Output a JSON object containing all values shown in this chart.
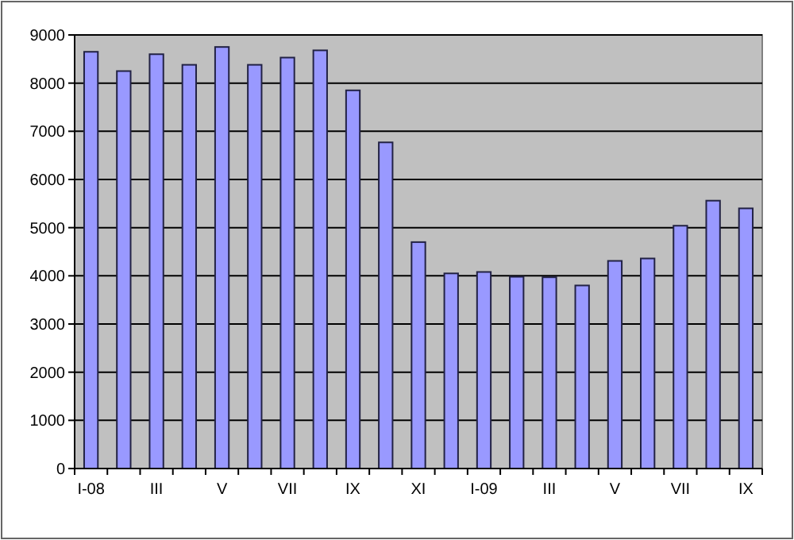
{
  "chart_data": {
    "type": "bar",
    "categories": [
      "I-08",
      null,
      "III",
      null,
      "V",
      null,
      "VII",
      null,
      "IX",
      null,
      "XI",
      null,
      "I-09",
      null,
      "III",
      null,
      "V",
      null,
      "VII",
      null,
      "IX"
    ],
    "values": [
      8650,
      8250,
      8600,
      8380,
      8750,
      8380,
      8530,
      8680,
      7850,
      6770,
      4700,
      4050,
      4080,
      3980,
      3970,
      3800,
      4310,
      4360,
      5040,
      5560,
      5400
    ],
    "color": "#9999ff",
    "ylim": [
      0,
      9000
    ],
    "yticks": [
      0,
      1000,
      2000,
      3000,
      4000,
      5000,
      6000,
      7000,
      8000,
      9000
    ],
    "grid": "y"
  }
}
